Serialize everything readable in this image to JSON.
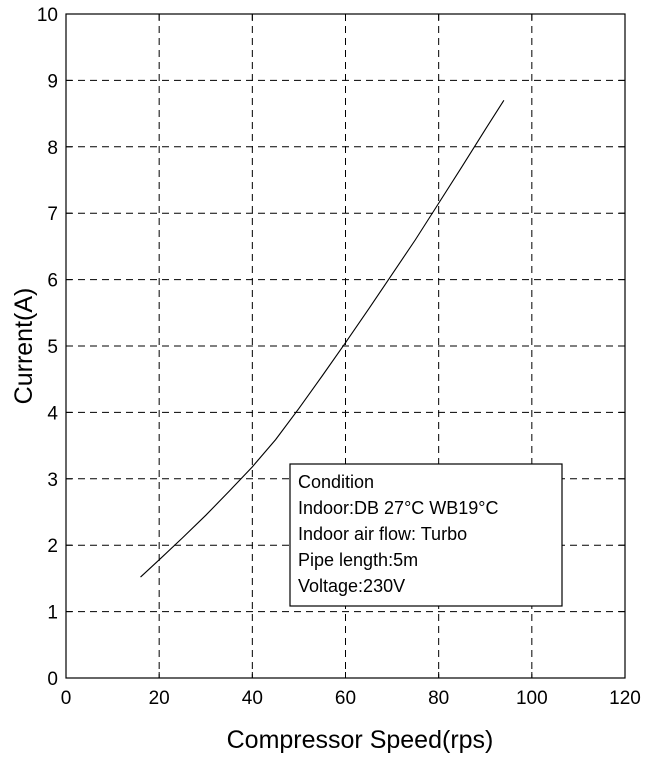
{
  "chart_data": {
    "type": "line",
    "xlabel": "Compressor Speed(rps)",
    "ylabel": "Current(A)",
    "xlim": [
      0,
      120
    ],
    "ylim": [
      0,
      10
    ],
    "xticks": [
      "0",
      "20",
      "40",
      "60",
      "80",
      "100",
      "120"
    ],
    "yticks": [
      "0",
      "1",
      "2",
      "3",
      "4",
      "5",
      "6",
      "7",
      "8",
      "9",
      "10"
    ],
    "grid": true,
    "series": [
      {
        "x": [
          16,
          20,
          25,
          30,
          35,
          40,
          45,
          50,
          55,
          60,
          65,
          70,
          75,
          80,
          85,
          90,
          94
        ],
        "y": [
          1.52,
          1.78,
          2.11,
          2.45,
          2.81,
          3.18,
          3.59,
          4.06,
          4.55,
          5.05,
          5.56,
          6.08,
          6.6,
          7.15,
          7.7,
          8.26,
          8.7
        ]
      }
    ],
    "annotation": {
      "lines": [
        "Condition",
        "Indoor:DB 27°C WB19°C",
        "Indoor air flow: Turbo",
        "Pipe length:5m",
        "Voltage:230V"
      ]
    }
  }
}
